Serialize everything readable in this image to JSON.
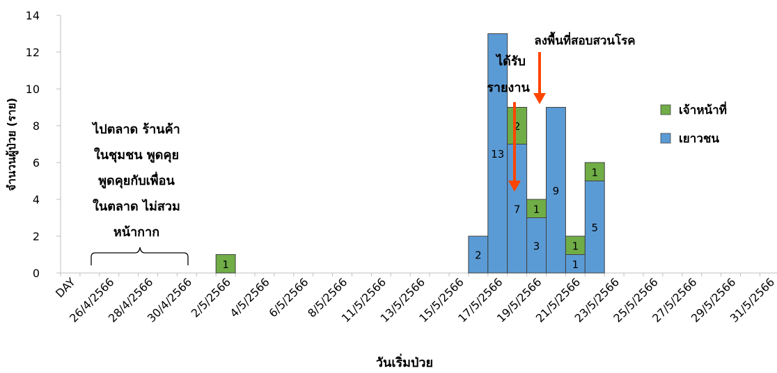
{
  "chart_data": {
    "type": "bar",
    "stacked": true,
    "xlabel": "วันเริ่มป่วย",
    "ylabel": "จำนวนผู้ป่วย (ราย)",
    "ylim": [
      0,
      14
    ],
    "yticks": [
      0,
      2,
      4,
      6,
      8,
      10,
      12,
      14
    ],
    "grid": false,
    "legend_position": "right",
    "x_tick_labels": [
      "DAY",
      "26/4/2566",
      "28/4/2566",
      "30/4/2566",
      "2/5/2566",
      "4/5/2566",
      "6/5/2566",
      "8/5/2566",
      "11/5/2566",
      "13/5/2566",
      "15/5/2566",
      "17/5/2566",
      "19/5/2566",
      "21/5/2566",
      "23/5/2566",
      "25/5/2566",
      "27/5/2566",
      "29/5/2566",
      "31/5/2566"
    ],
    "bars": [
      {
        "slot": 8,
        "youth": 0,
        "staff": 1,
        "label_youth": "",
        "label_staff": "1"
      },
      {
        "slot": 21,
        "youth": 2,
        "staff": 0,
        "label_youth": "2",
        "label_staff": ""
      },
      {
        "slot": 22,
        "youth": 13,
        "staff": 0,
        "label_youth": "13",
        "label_staff": ""
      },
      {
        "slot": 23,
        "youth": 7,
        "staff": 2,
        "label_youth": "7",
        "label_staff": "2"
      },
      {
        "slot": 24,
        "youth": 3,
        "staff": 1,
        "label_youth": "3",
        "label_staff": "1"
      },
      {
        "slot": 25,
        "youth": 9,
        "staff": 0,
        "label_youth": "9",
        "label_staff": ""
      },
      {
        "slot": 26,
        "youth": 1,
        "staff": 1,
        "label_youth": "1",
        "label_staff": "1"
      },
      {
        "slot": 27,
        "youth": 5,
        "staff": 1,
        "label_youth": "5",
        "label_staff": "1"
      }
    ],
    "series": [
      {
        "name": "เจ้าหน้าที่",
        "color": "#70ad47",
        "key": "staff"
      },
      {
        "name": "เยาวชน",
        "color": "#5b9bd5",
        "key": "youth"
      }
    ],
    "annotations": {
      "behavior_lines": [
        "ไปตลาด ร้านค้า",
        "ในชุมชน พูดคุย",
        "พูดคุยกับเพื่อน",
        "ในตลาด ไม่สวม",
        "หน้ากาก"
      ],
      "reported_lines": [
        "ได้รับ",
        "รายงาน"
      ],
      "investigation": "ลงพื้นที่สอบสวนโรค",
      "arrow_color": "#ff4500"
    }
  }
}
